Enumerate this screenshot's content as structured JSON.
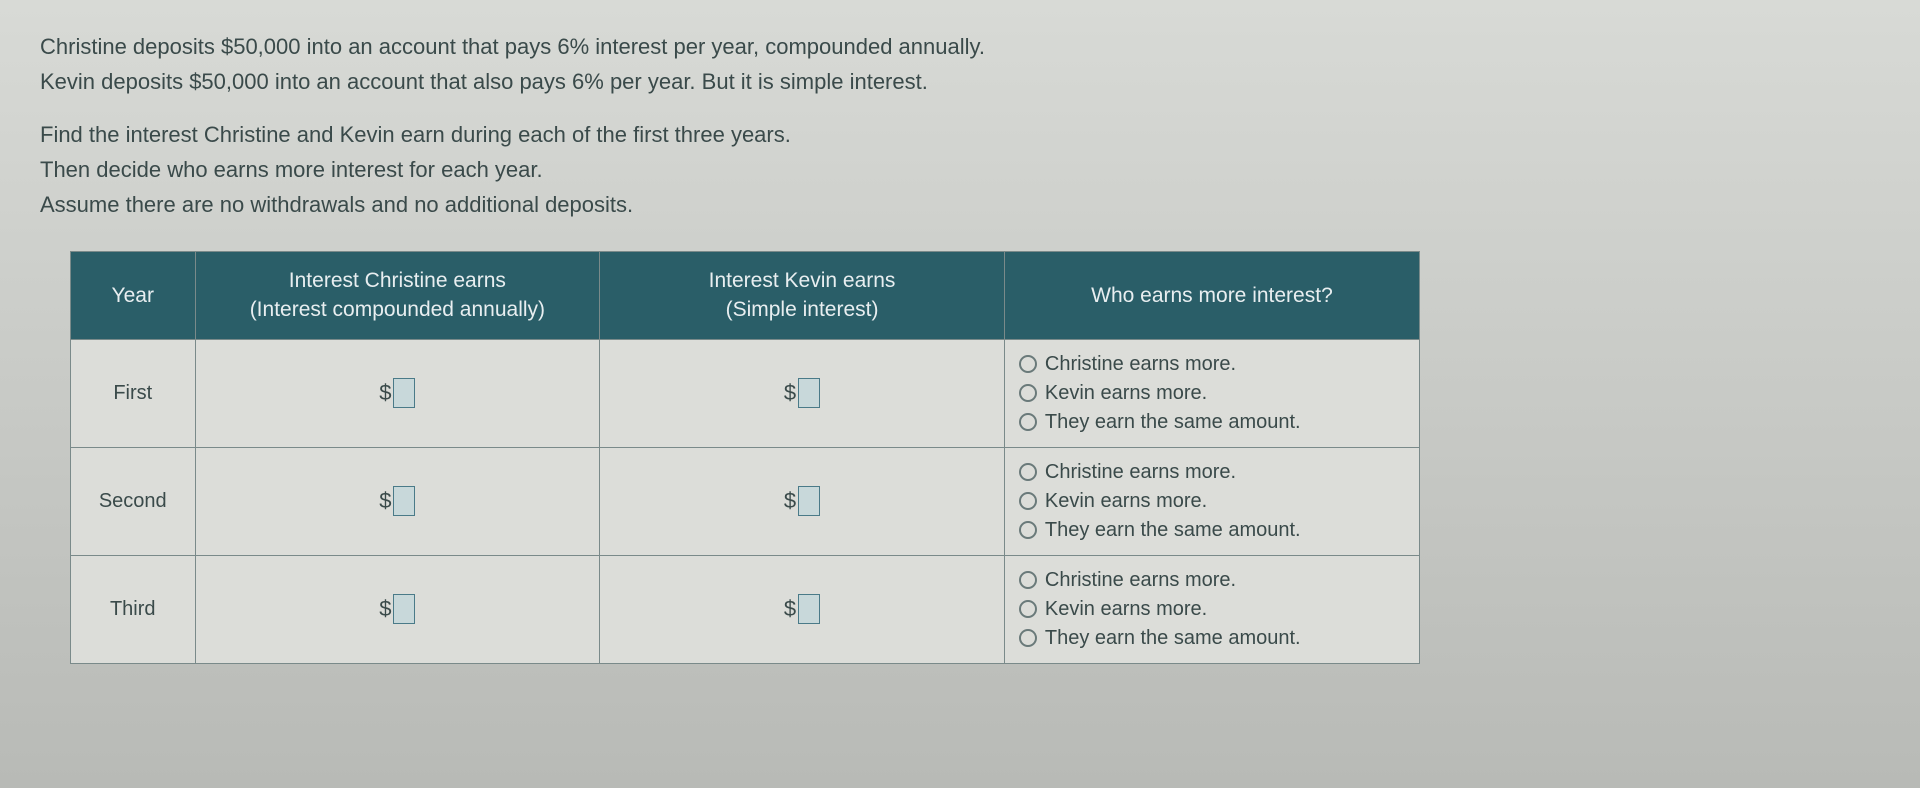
{
  "problem": {
    "line1": "Christine deposits $50,000 into an account that pays 6% interest per year, compounded annually.",
    "line2": "Kevin deposits $50,000 into an account that also pays 6% per year. But it is simple interest.",
    "line3": "Find the interest Christine and Kevin earn during each of the first three years.",
    "line4": "Then decide who earns more interest for each year.",
    "line5": "Assume there are no withdrawals and no additional deposits."
  },
  "table": {
    "headers": {
      "year": "Year",
      "christine_line1": "Interest Christine earns",
      "christine_line2": "(Interest compounded annually)",
      "kevin_line1": "Interest Kevin earns",
      "kevin_line2": "(Simple interest)",
      "who": "Who earns more interest?"
    },
    "currency_symbol": "$",
    "rows": [
      {
        "year": "First",
        "christine_value": "",
        "kevin_value": "",
        "options": [
          "Christine earns more.",
          "Kevin earns more.",
          "They earn the same amount."
        ]
      },
      {
        "year": "Second",
        "christine_value": "",
        "kevin_value": "",
        "options": [
          "Christine earns more.",
          "Kevin earns more.",
          "They earn the same amount."
        ]
      },
      {
        "year": "Third",
        "christine_value": "",
        "kevin_value": "",
        "options": [
          "Christine earns more.",
          "Kevin earns more.",
          "They earn the same amount."
        ]
      }
    ]
  },
  "styling": {
    "header_bg": "#2a5e68",
    "header_text": "#e8eef0",
    "cell_bg": "#dcddd9",
    "border_color": "#7a8a8a",
    "body_text_color": "#3a4a4a",
    "input_border": "#4a7a88",
    "input_bg": "#c8d8da",
    "font_size_body": 22,
    "font_size_header": 21,
    "font_size_cell": 20
  }
}
